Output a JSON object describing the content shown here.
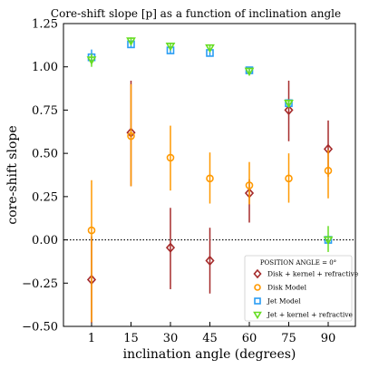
{
  "chart_data": {
    "type": "scatter",
    "title": "Core-shift slope [p] as a function of inclination angle",
    "xlabel": "inclination angle (degrees)",
    "ylabel": "core-shift slope",
    "categories": [
      "1",
      "15",
      "30",
      "45",
      "60",
      "75",
      "90"
    ],
    "ylim": [
      -0.5,
      1.25
    ],
    "yticks": [
      "−0.50",
      "−0.25",
      "0.00",
      "0.25",
      "0.50",
      "0.75",
      "1.00",
      "1.25"
    ],
    "ytick_values": [
      -0.5,
      -0.25,
      0.0,
      0.25,
      0.5,
      0.75,
      1.0,
      1.25
    ],
    "reference_line": 0.0,
    "legend": {
      "title": "POSITION ANGLE = 0°",
      "position": "lower-right"
    },
    "series": [
      {
        "name": "Disk + kernel + refractive",
        "marker": "diamond",
        "color": "#a52a2a",
        "values": [
          -0.23,
          0.62,
          -0.045,
          -0.12,
          0.27,
          0.75,
          0.525
        ],
        "err_low": [
          0.25,
          0.31,
          0.24,
          0.19,
          0.17,
          0.18,
          0.16
        ],
        "err_high": [
          0.25,
          0.3,
          0.23,
          0.19,
          0.08,
          0.17,
          0.165
        ]
      },
      {
        "name": "Disk Model",
        "marker": "circle",
        "color": "#ff9900",
        "values": [
          0.055,
          0.6,
          0.475,
          0.355,
          0.315,
          0.355,
          0.4
        ],
        "err_low": [
          0.53,
          0.29,
          0.19,
          0.145,
          0.11,
          0.14,
          0.16
        ],
        "err_high": [
          0.29,
          0.3,
          0.185,
          0.15,
          0.135,
          0.145,
          0.12
        ]
      },
      {
        "name": "Jet Model",
        "marker": "square",
        "color": "#2a9df4",
        "values": [
          1.055,
          1.13,
          1.095,
          1.08,
          0.98,
          0.79,
          0.0
        ],
        "err_low": [
          0.025,
          0.02,
          0.015,
          0.015,
          0.015,
          0.015,
          0.01
        ],
        "err_high": [
          0.045,
          0.02,
          0.015,
          0.015,
          0.015,
          0.015,
          0.01
        ]
      },
      {
        "name": "Jet + kernel + refractive",
        "marker": "triangle-down",
        "color": "#66dd22",
        "values": [
          1.04,
          1.15,
          1.12,
          1.11,
          0.975,
          0.79,
          0.0
        ],
        "err_low": [
          0.04,
          0.02,
          0.015,
          0.015,
          0.02,
          0.02,
          0.07
        ],
        "err_high": [
          0.035,
          0.02,
          0.015,
          0.015,
          0.015,
          0.02,
          0.08
        ]
      }
    ]
  }
}
